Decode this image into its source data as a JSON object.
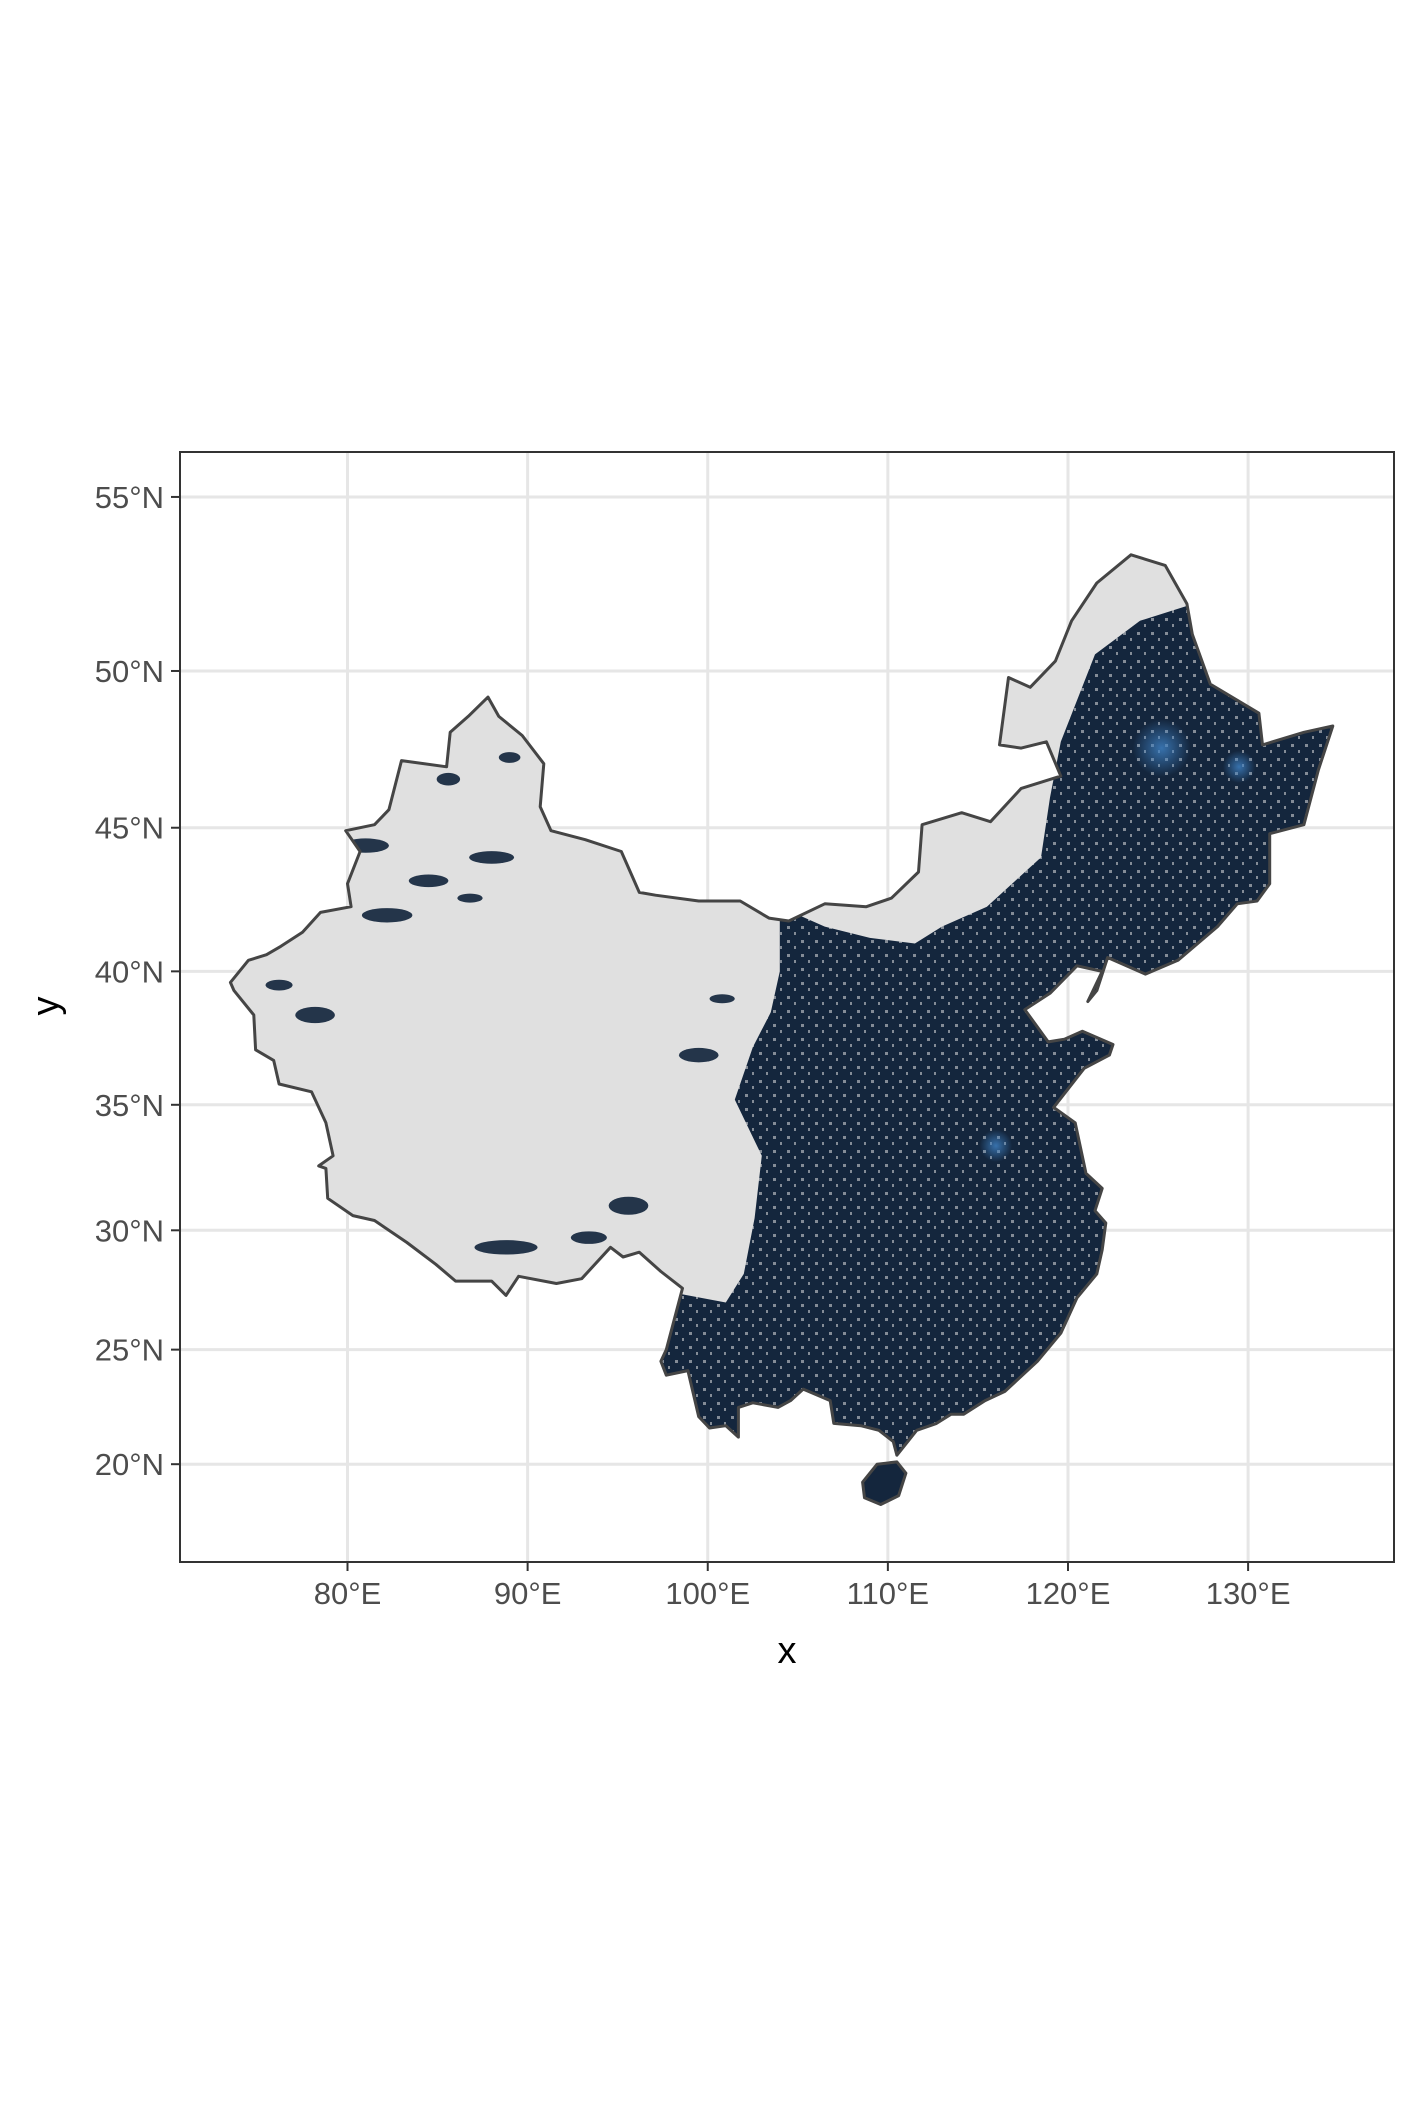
{
  "chart_data": {
    "type": "map",
    "title": "",
    "xlabel": "x",
    "ylabel": "y",
    "xlim": [
      70.7,
      138.1
    ],
    "ylim": [
      15.6,
      56.2
    ],
    "grid": true,
    "x_ticks": [
      {
        "value": 80,
        "label": "80°E"
      },
      {
        "value": 90,
        "label": "90°E"
      },
      {
        "value": 100,
        "label": "100°E"
      },
      {
        "value": 110,
        "label": "110°E"
      },
      {
        "value": 120,
        "label": "120°E"
      },
      {
        "value": 130,
        "label": "130°E"
      }
    ],
    "y_ticks": [
      {
        "value": 20,
        "label": "20°N"
      },
      {
        "value": 25,
        "label": "25°N"
      },
      {
        "value": 30,
        "label": "30°N"
      },
      {
        "value": 35,
        "label": "35°N"
      },
      {
        "value": 40,
        "label": "40°N"
      },
      {
        "value": 45,
        "label": "45°N"
      },
      {
        "value": 50,
        "label": "50°N"
      },
      {
        "value": 55,
        "label": "55°N"
      }
    ],
    "colors": {
      "land_no_data": "#e0e0e0",
      "raster_fill": "#14263d",
      "raster_highlight": "#3e7fc0",
      "outline": "#454545",
      "grid": "#e6e6e6",
      "panel_border": "#333333"
    },
    "outline": [
      [
        73.5,
        39.6
      ],
      [
        74.5,
        40.4
      ],
      [
        75.5,
        40.6
      ],
      [
        76.3,
        40.9
      ],
      [
        77.5,
        41.4
      ],
      [
        78.5,
        42.1
      ],
      [
        80.2,
        42.3
      ],
      [
        80.0,
        43.1
      ],
      [
        80.7,
        44.2
      ],
      [
        79.9,
        44.9
      ],
      [
        81.5,
        45.1
      ],
      [
        82.3,
        45.6
      ],
      [
        83.0,
        47.2
      ],
      [
        85.5,
        47.0
      ],
      [
        85.7,
        48.1
      ],
      [
        86.7,
        48.6
      ],
      [
        87.8,
        49.2
      ],
      [
        88.4,
        48.6
      ],
      [
        89.7,
        48.0
      ],
      [
        90.9,
        47.1
      ],
      [
        90.7,
        45.7
      ],
      [
        91.3,
        44.9
      ],
      [
        93.2,
        44.6
      ],
      [
        95.2,
        44.2
      ],
      [
        96.2,
        42.8
      ],
      [
        97.1,
        42.7
      ],
      [
        99.5,
        42.5
      ],
      [
        101.8,
        42.5
      ],
      [
        103.4,
        41.9
      ],
      [
        104.5,
        41.8
      ],
      [
        106.5,
        42.4
      ],
      [
        108.8,
        42.3
      ],
      [
        110.2,
        42.6
      ],
      [
        111.7,
        43.5
      ],
      [
        111.9,
        45.1
      ],
      [
        114.1,
        45.5
      ],
      [
        115.7,
        45.2
      ],
      [
        117.4,
        46.3
      ],
      [
        119.6,
        46.7
      ],
      [
        118.8,
        47.8
      ],
      [
        117.4,
        47.6
      ],
      [
        116.2,
        47.7
      ],
      [
        116.7,
        49.8
      ],
      [
        117.9,
        49.5
      ],
      [
        119.3,
        50.3
      ],
      [
        120.2,
        51.5
      ],
      [
        121.6,
        52.6
      ],
      [
        123.5,
        53.4
      ],
      [
        125.4,
        53.1
      ],
      [
        126.6,
        52.0
      ],
      [
        126.9,
        51.1
      ],
      [
        127.9,
        49.6
      ],
      [
        130.6,
        48.7
      ],
      [
        130.8,
        47.7
      ],
      [
        133.1,
        48.1
      ],
      [
        134.7,
        48.3
      ],
      [
        133.9,
        46.9
      ],
      [
        133.1,
        45.1
      ],
      [
        131.2,
        44.8
      ],
      [
        131.2,
        43.1
      ],
      [
        130.5,
        42.5
      ],
      [
        129.4,
        42.4
      ],
      [
        128.3,
        41.6
      ],
      [
        126.1,
        40.4
      ],
      [
        124.3,
        39.9
      ],
      [
        122.2,
        40.5
      ],
      [
        121.6,
        39.3
      ],
      [
        121.1,
        38.9
      ],
      [
        121.9,
        40.0
      ],
      [
        120.5,
        40.2
      ],
      [
        119.0,
        39.2
      ],
      [
        117.6,
        38.6
      ],
      [
        118.9,
        37.4
      ],
      [
        119.8,
        37.5
      ],
      [
        120.8,
        37.8
      ],
      [
        122.5,
        37.3
      ],
      [
        122.3,
        36.9
      ],
      [
        120.9,
        36.4
      ],
      [
        119.2,
        34.9
      ],
      [
        120.4,
        34.3
      ],
      [
        121.0,
        32.3
      ],
      [
        121.9,
        31.7
      ],
      [
        121.5,
        30.8
      ],
      [
        122.1,
        30.3
      ],
      [
        121.9,
        29.2
      ],
      [
        121.6,
        28.2
      ],
      [
        120.5,
        27.2
      ],
      [
        119.6,
        25.7
      ],
      [
        118.3,
        24.5
      ],
      [
        116.5,
        23.2
      ],
      [
        115.4,
        22.8
      ],
      [
        114.2,
        22.2
      ],
      [
        113.5,
        22.2
      ],
      [
        112.7,
        21.8
      ],
      [
        111.6,
        21.5
      ],
      [
        110.5,
        20.4
      ],
      [
        110.3,
        21.0
      ],
      [
        109.5,
        21.5
      ],
      [
        108.5,
        21.7
      ],
      [
        107.0,
        21.8
      ],
      [
        106.8,
        22.8
      ],
      [
        105.3,
        23.3
      ],
      [
        104.6,
        22.8
      ],
      [
        103.9,
        22.5
      ],
      [
        102.5,
        22.7
      ],
      [
        101.7,
        22.5
      ],
      [
        101.7,
        21.2
      ],
      [
        101.0,
        21.7
      ],
      [
        100.1,
        21.6
      ],
      [
        99.5,
        22.1
      ],
      [
        98.9,
        24.1
      ],
      [
        97.7,
        23.9
      ],
      [
        97.4,
        24.5
      ],
      [
        97.7,
        25.0
      ],
      [
        98.6,
        27.6
      ],
      [
        97.4,
        28.3
      ],
      [
        96.2,
        29.1
      ],
      [
        95.3,
        28.9
      ],
      [
        94.6,
        29.3
      ],
      [
        93.0,
        28.0
      ],
      [
        91.6,
        27.8
      ],
      [
        89.5,
        28.1
      ],
      [
        88.8,
        27.3
      ],
      [
        88.0,
        27.9
      ],
      [
        86.0,
        27.9
      ],
      [
        84.9,
        28.6
      ],
      [
        83.3,
        29.5
      ],
      [
        81.5,
        30.4
      ],
      [
        80.3,
        30.6
      ],
      [
        78.9,
        31.3
      ],
      [
        78.8,
        32.5
      ],
      [
        78.4,
        32.6
      ],
      [
        79.2,
        33.0
      ],
      [
        78.8,
        34.3
      ],
      [
        78.0,
        35.5
      ],
      [
        76.2,
        35.8
      ],
      [
        75.9,
        36.7
      ],
      [
        74.9,
        37.1
      ],
      [
        74.8,
        38.4
      ],
      [
        73.7,
        39.3
      ],
      [
        73.5,
        39.6
      ]
    ],
    "hainan_outline": [
      [
        108.6,
        19.2
      ],
      [
        109.4,
        20.0
      ],
      [
        110.5,
        20.1
      ],
      [
        111.0,
        19.6
      ],
      [
        110.6,
        18.6
      ],
      [
        109.6,
        18.2
      ],
      [
        108.7,
        18.5
      ],
      [
        108.6,
        19.2
      ]
    ]
  }
}
